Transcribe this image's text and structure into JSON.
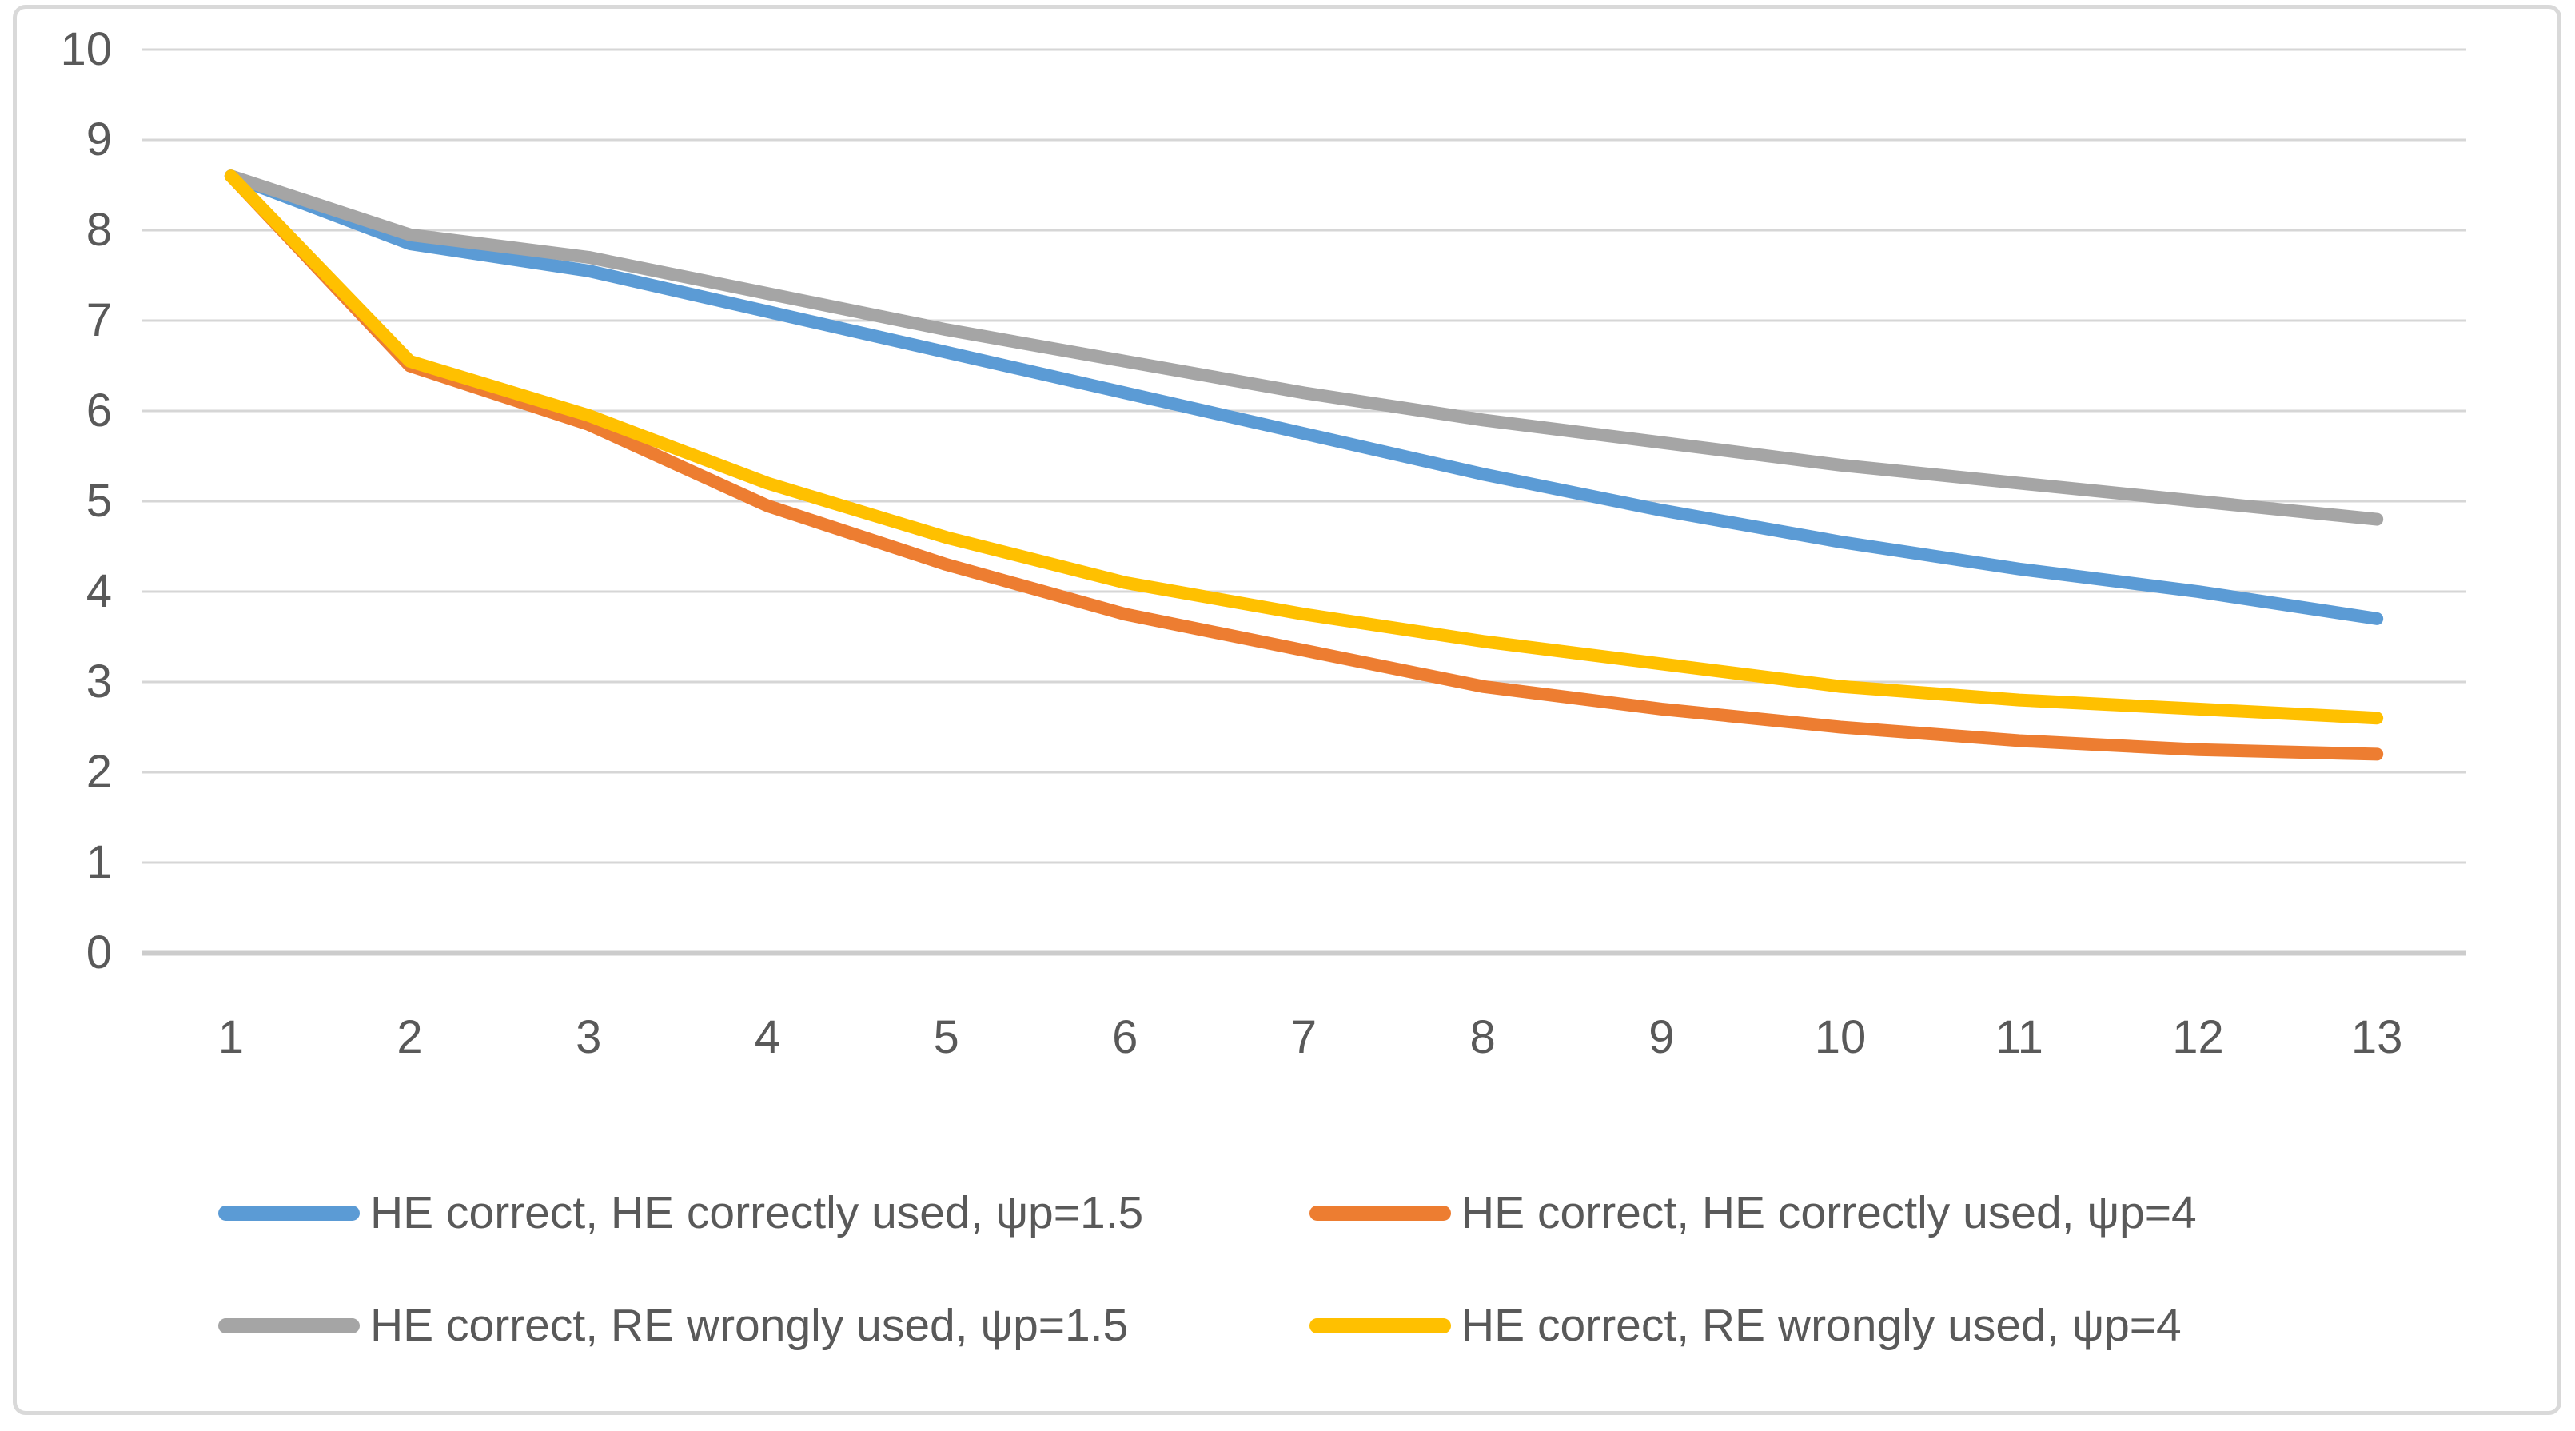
{
  "chart_data": {
    "type": "line",
    "x": [
      1,
      2,
      3,
      4,
      5,
      6,
      7,
      8,
      9,
      10,
      11,
      12,
      13
    ],
    "x_tick_labels": [
      "1",
      "2",
      "3",
      "4",
      "5",
      "6",
      "7",
      "8",
      "9",
      "10",
      "11",
      "12",
      "13"
    ],
    "ylim": [
      0,
      10
    ],
    "yticks": [
      0,
      1,
      2,
      3,
      4,
      5,
      6,
      7,
      8,
      9,
      10
    ],
    "grid": "horizontal",
    "legend_position": "bottom",
    "colors": {
      "grid_line": "#D6D6D6",
      "axis_line": "#CCCCCC",
      "tick_text": "#595959",
      "frame_border": "#D9D9D9"
    },
    "series": [
      {
        "name": "HE correct, HE correctly used, ψp=1.5",
        "color": "#5B9BD5",
        "values": [
          8.6,
          7.85,
          7.55,
          7.1,
          6.65,
          6.2,
          5.75,
          5.3,
          4.9,
          4.55,
          4.25,
          4.0,
          3.7
        ]
      },
      {
        "name": "HE correct, HE correctly used, ψp=4",
        "color": "#ED7D31",
        "values": [
          8.6,
          6.5,
          5.85,
          4.95,
          4.3,
          3.75,
          3.35,
          2.95,
          2.7,
          2.5,
          2.35,
          2.25,
          2.2
        ]
      },
      {
        "name": "HE correct, RE wrongly used, ψp=1.5",
        "color": "#A5A5A5",
        "values": [
          8.6,
          7.95,
          7.7,
          7.3,
          6.9,
          6.55,
          6.2,
          5.9,
          5.65,
          5.4,
          5.2,
          5.0,
          4.8
        ]
      },
      {
        "name": "HE correct, RE wrongly used, ψp=4",
        "color": "#FFC000",
        "values": [
          8.6,
          6.55,
          5.95,
          5.2,
          4.6,
          4.1,
          3.75,
          3.45,
          3.2,
          2.95,
          2.8,
          2.7,
          2.6
        ]
      }
    ]
  }
}
